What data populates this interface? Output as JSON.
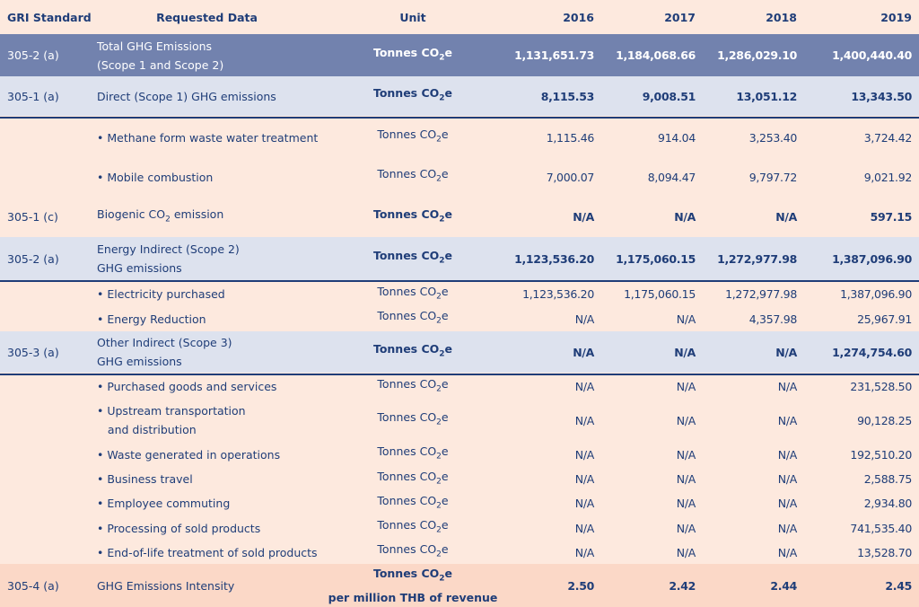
{
  "header": {
    "gri": "GRI Standard",
    "requested": "Requested Data",
    "unit": "Unit",
    "y2016": "2016",
    "y2017": "2017",
    "y2018": "2018",
    "y2019": "2019"
  },
  "rows": [
    {
      "type": "total",
      "gri": "305-2 (a)",
      "label": [
        "Total GHG Emissions",
        "(Scope 1 and Scope 2)"
      ],
      "unit": "Tonnes CO",
      "unitsub": "2",
      "unitsuf": "e",
      "v2016": "1,131,651.73",
      "v2017": "1,184,068.66",
      "v2018": "1,286,029.10",
      "v2019": "1,400,440.40"
    },
    {
      "type": "sub",
      "gri": "305-1 (a)",
      "label": [
        "Direct (Scope 1) GHG emissions"
      ],
      "unit": "Tonnes CO",
      "unitsub": "2",
      "unitsuf": "e",
      "v2016": "8,115.53",
      "v2017": "9,008.51",
      "v2018": "13,051.12",
      "v2019": "13,343.50"
    },
    {
      "type": "item",
      "gri": "",
      "label": [
        "• Methane form waste water treatment"
      ],
      "unit": "Tonnes CO",
      "unitsub": "2",
      "unitsuf": "e",
      "v2016": "1,115.46",
      "v2017": "914.04",
      "v2018": "3,253.40",
      "v2019": "3,724.42"
    },
    {
      "type": "item",
      "gri": "",
      "label": [
        "• Mobile combustion"
      ],
      "unit": "Tonnes CO",
      "unitsub": "2",
      "unitsuf": "e",
      "v2016": "7,000.07",
      "v2017": "8,094.47",
      "v2018": "9,797.72",
      "v2019": "9,021.92"
    },
    {
      "type": "biogenic",
      "gri": "305-1 (c)",
      "label_pre": "Biogenic CO",
      "label_sub": "2",
      "label_suf": " emission",
      "unit": "Tonnes CO",
      "unitsub": "2",
      "unitsuf": "e",
      "v2016": "N/A",
      "v2017": "N/A",
      "v2018": "N/A",
      "v2019": "597.15"
    },
    {
      "type": "sub",
      "gri": "305-2 (a)",
      "label": [
        "Energy Indirect (Scope 2)",
        "GHG emissions"
      ],
      "unit": "Tonnes CO",
      "unitsub": "2",
      "unitsuf": "e",
      "v2016": "1,123,536.20",
      "v2017": "1,175,060.15",
      "v2018": "1,272,977.98",
      "v2019": "1,387,096.90"
    },
    {
      "type": "item",
      "gri": "",
      "label": [
        "• Electricity purchased"
      ],
      "unit": "Tonnes CO",
      "unitsub": "2",
      "unitsuf": "e",
      "v2016": "1,123,536.20",
      "v2017": "1,175,060.15",
      "v2018": "1,272,977.98",
      "v2019": "1,387,096.90"
    },
    {
      "type": "item",
      "gri": "",
      "label": [
        "• Energy Reduction"
      ],
      "unit": "Tonnes CO",
      "unitsub": "2",
      "unitsuf": "e",
      "v2016": "N/A",
      "v2017": "N/A",
      "v2018": "4,357.98",
      "v2019": "25,967.91"
    },
    {
      "type": "sub",
      "gri": "305-3 (a)",
      "label": [
        "Other Indirect (Scope 3)",
        "GHG emissions"
      ],
      "unit": "Tonnes CO",
      "unitsub": "2",
      "unitsuf": "e",
      "v2016": "N/A",
      "v2017": "N/A",
      "v2018": "N/A",
      "v2019": "1,274,754.60"
    },
    {
      "type": "item",
      "gri": "",
      "label": [
        "• Purchased goods and services"
      ],
      "unit": "Tonnes CO",
      "unitsub": "2",
      "unitsuf": "e",
      "v2016": "N/A",
      "v2017": "N/A",
      "v2018": "N/A",
      "v2019": "231,528.50"
    },
    {
      "type": "item",
      "gri": "",
      "label": [
        "• Upstream transportation",
        "   and distribution"
      ],
      "unit": "Tonnes CO",
      "unitsub": "2",
      "unitsuf": "e",
      "v2016": "N/A",
      "v2017": "N/A",
      "v2018": "N/A",
      "v2019": "90,128.25"
    },
    {
      "type": "item",
      "gri": "",
      "label": [
        "• Waste generated in operations"
      ],
      "unit": "Tonnes CO",
      "unitsub": "2",
      "unitsuf": "e",
      "v2016": "N/A",
      "v2017": "N/A",
      "v2018": "N/A",
      "v2019": "192,510.20"
    },
    {
      "type": "item",
      "gri": "",
      "label": [
        "• Business travel"
      ],
      "unit": "Tonnes CO",
      "unitsub": "2",
      "unitsuf": "e",
      "v2016": "N/A",
      "v2017": "N/A",
      "v2018": "N/A",
      "v2019": "2,588.75"
    },
    {
      "type": "item",
      "gri": "",
      "label": [
        "• Employee commuting"
      ],
      "unit": "Tonnes CO",
      "unitsub": "2",
      "unitsuf": "e",
      "v2016": "N/A",
      "v2017": "N/A",
      "v2018": "N/A",
      "v2019": "2,934.80"
    },
    {
      "type": "item",
      "gri": "",
      "label": [
        "• Processing of sold products"
      ],
      "unit": "Tonnes CO",
      "unitsub": "2",
      "unitsuf": "e",
      "v2016": "N/A",
      "v2017": "N/A",
      "v2018": "N/A",
      "v2019": "741,535.40"
    },
    {
      "type": "item",
      "gri": "",
      "label": [
        "• End-of-life treatment of sold products"
      ],
      "unit": "Tonnes CO",
      "unitsub": "2",
      "unitsuf": "e",
      "v2016": "N/A",
      "v2017": "N/A",
      "v2018": "N/A",
      "v2019": "13,528.70"
    },
    {
      "type": "intensity",
      "gri": "305-4 (a)",
      "label": [
        "GHG Emissions Intensity"
      ],
      "unit": "Tonnes CO",
      "unitsub": "2",
      "unitsuf": "e",
      "unit2": "per million THB of revenue",
      "v2016": "2.50",
      "v2017": "2.42",
      "v2018": "2.44",
      "v2019": "2.45"
    }
  ],
  "colors": {
    "background": "#fde9de",
    "total_band": "#7282ae",
    "sub_band": "#dde2ee",
    "intensity_band": "#fbd8c7",
    "text": "#1f3d78"
  }
}
